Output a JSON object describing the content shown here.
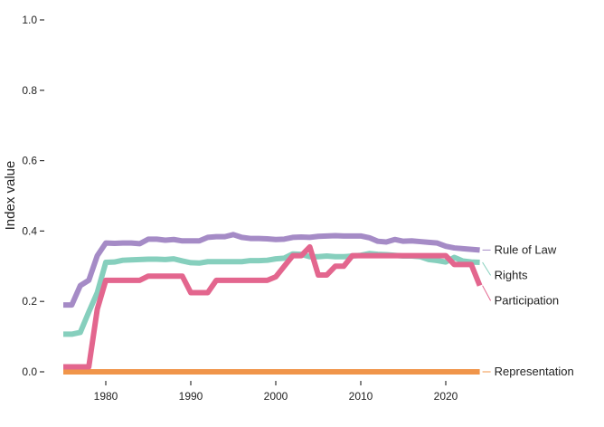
{
  "chart_data": {
    "type": "line",
    "title": "",
    "xlabel": "",
    "ylabel": "Index value",
    "xlim": [
      1975,
      2025
    ],
    "ylim": [
      0,
      1
    ],
    "x_ticks": [
      1980,
      1990,
      2000,
      2010,
      2020
    ],
    "y_ticks": [
      0.0,
      0.2,
      0.4,
      0.6,
      0.8,
      1.0
    ],
    "y_tick_labels": [
      "0.0",
      "0.2",
      "0.4",
      "0.6",
      "0.8",
      "1.0"
    ],
    "grid": false,
    "legend": "direct labels at right end of each line",
    "x": [
      1975,
      1976,
      1977,
      1978,
      1979,
      1980,
      1981,
      1982,
      1983,
      1984,
      1985,
      1986,
      1987,
      1988,
      1989,
      1990,
      1991,
      1992,
      1993,
      1994,
      1995,
      1996,
      1997,
      1998,
      1999,
      2000,
      2001,
      2002,
      2003,
      2004,
      2005,
      2006,
      2007,
      2008,
      2009,
      2010,
      2011,
      2012,
      2013,
      2014,
      2015,
      2016,
      2017,
      2018,
      2019,
      2020,
      2021,
      2022,
      2023,
      2024
    ],
    "series": [
      {
        "name": "Rule of Law",
        "color": "#a58bc6",
        "values": [
          0.19,
          0.19,
          0.245,
          0.26,
          0.33,
          0.366,
          0.365,
          0.366,
          0.366,
          0.364,
          0.377,
          0.377,
          0.374,
          0.376,
          0.372,
          0.372,
          0.372,
          0.382,
          0.384,
          0.384,
          0.39,
          0.382,
          0.379,
          0.379,
          0.378,
          0.376,
          0.377,
          0.382,
          0.383,
          0.382,
          0.385,
          0.386,
          0.387,
          0.386,
          0.386,
          0.386,
          0.381,
          0.371,
          0.369,
          0.376,
          0.371,
          0.372,
          0.37,
          0.368,
          0.366,
          0.357,
          0.352,
          0.35,
          0.348,
          0.346
        ]
      },
      {
        "name": "Rights",
        "color": "#86cfbd",
        "values": [
          0.107,
          0.107,
          0.112,
          0.17,
          0.225,
          0.311,
          0.312,
          0.317,
          0.318,
          0.319,
          0.32,
          0.32,
          0.319,
          0.321,
          0.315,
          0.31,
          0.309,
          0.313,
          0.313,
          0.313,
          0.313,
          0.313,
          0.316,
          0.316,
          0.317,
          0.321,
          0.323,
          0.335,
          0.334,
          0.327,
          0.327,
          0.329,
          0.327,
          0.327,
          0.329,
          0.331,
          0.336,
          0.334,
          0.333,
          0.331,
          0.329,
          0.329,
          0.327,
          0.319,
          0.316,
          0.312,
          0.325,
          0.315,
          0.312,
          0.311
        ]
      },
      {
        "name": "Participation",
        "color": "#e3668e",
        "values": [
          0.014,
          0.014,
          0.014,
          0.014,
          0.178,
          0.26,
          0.26,
          0.26,
          0.26,
          0.26,
          0.272,
          0.272,
          0.272,
          0.272,
          0.272,
          0.225,
          0.225,
          0.225,
          0.26,
          0.26,
          0.26,
          0.26,
          0.26,
          0.26,
          0.26,
          0.27,
          0.3,
          0.33,
          0.33,
          0.355,
          0.275,
          0.275,
          0.3,
          0.3,
          0.33,
          0.33,
          0.33,
          0.33,
          0.33,
          0.33,
          0.33,
          0.33,
          0.33,
          0.33,
          0.33,
          0.33,
          0.305,
          0.305,
          0.305,
          0.245
        ]
      },
      {
        "name": "Representation",
        "color": "#f0954a",
        "values": [
          0,
          0,
          0,
          0,
          0,
          0,
          0,
          0,
          0,
          0,
          0,
          0,
          0,
          0,
          0,
          0,
          0,
          0,
          0,
          0,
          0,
          0,
          0,
          0,
          0,
          0,
          0,
          0,
          0,
          0,
          0,
          0,
          0,
          0,
          0,
          0,
          0,
          0,
          0,
          0,
          0,
          0,
          0,
          0,
          0,
          0,
          0,
          0,
          0,
          0
        ]
      }
    ]
  }
}
